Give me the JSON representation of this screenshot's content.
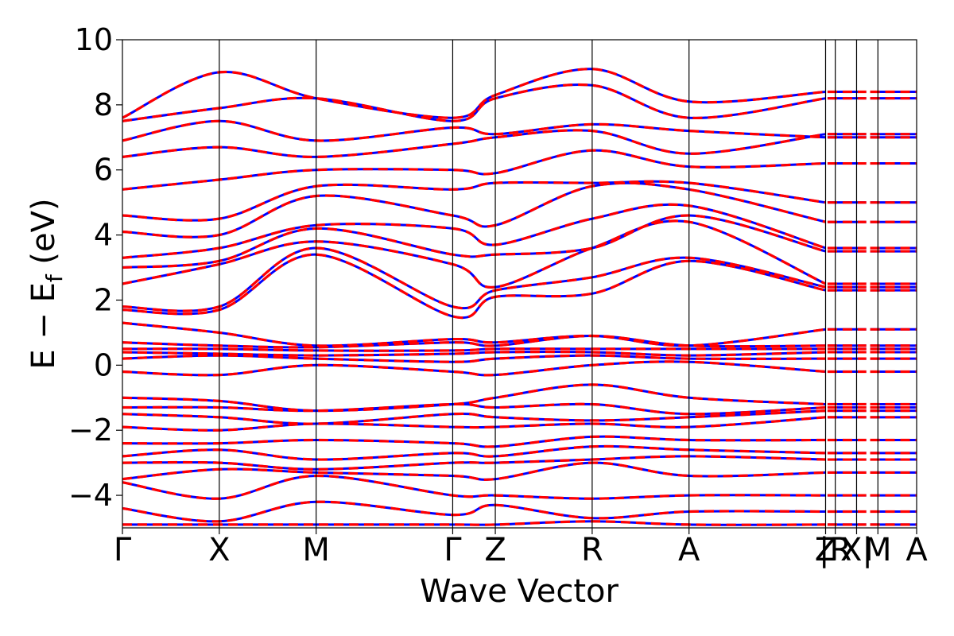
{
  "chart_data": {
    "type": "line",
    "title": "",
    "xlabel": "Wave Vector",
    "ylabel": "E − E",
    "ylabel_sub": "f",
    "ylabel_unit": " (eV)",
    "ylim": [
      -5,
      10
    ],
    "yticks": [
      -4,
      -2,
      0,
      2,
      4,
      6,
      8,
      10
    ],
    "ytick_labels": [
      "−4",
      "−2",
      "0",
      "2",
      "4",
      "6",
      "8",
      "10"
    ],
    "xlim": [
      0,
      8.2
    ],
    "grid": false,
    "legend": "none",
    "kpoints": [
      {
        "label": "Γ",
        "x": 0
      },
      {
        "label": "X",
        "x": 1.0
      },
      {
        "label": "M",
        "x": 2.0
      },
      {
        "label": "Γ",
        "x": 3.41
      },
      {
        "label": "Z",
        "x": 3.85
      },
      {
        "label": "R",
        "x": 4.85
      },
      {
        "label": "A",
        "x": 5.85
      },
      {
        "label": "Z",
        "x": 7.26
      },
      {
        "label": "|R",
        "x": 7.36
      },
      {
        "label": "X|",
        "x": 7.58
      },
      {
        "label": "M",
        "x": 7.8
      },
      {
        "label": "A",
        "x": 8.2
      }
    ],
    "kpath_breaks": [
      7.26,
      7.7
    ],
    "series": [
      {
        "name": "",
        "color": "#0000ff",
        "style": "solid"
      },
      {
        "name": "",
        "color": "#ff0000",
        "style": "dashed"
      }
    ],
    "bands_at_kpoints": {
      "x": [
        0,
        1.0,
        2.0,
        3.41,
        3.85,
        4.85,
        5.85,
        7.26
      ],
      "energies": [
        [
          -4.9,
          -4.9,
          -4.9,
          -4.9,
          -4.9,
          -4.8,
          -4.9,
          -4.9
        ],
        [
          -4.4,
          -4.8,
          -4.2,
          -4.6,
          -4.3,
          -4.7,
          -4.5,
          -4.5
        ],
        [
          -3.6,
          -4.1,
          -3.4,
          -4.0,
          -4.0,
          -4.1,
          -4.0,
          -4.0
        ],
        [
          -3.5,
          -3.2,
          -3.3,
          -3.4,
          -3.5,
          -3.0,
          -3.4,
          -3.3
        ],
        [
          -3.0,
          -3.0,
          -3.2,
          -3.0,
          -3.0,
          -2.9,
          -2.8,
          -2.9
        ],
        [
          -2.8,
          -2.6,
          -2.9,
          -2.7,
          -2.8,
          -2.5,
          -2.6,
          -2.7
        ],
        [
          -2.4,
          -2.4,
          -2.3,
          -2.4,
          -2.5,
          -2.2,
          -2.3,
          -2.3
        ],
        [
          -1.9,
          -2.0,
          -1.8,
          -1.9,
          -1.9,
          -1.8,
          -1.9,
          -1.6
        ],
        [
          -1.5,
          -1.6,
          -1.8,
          -1.5,
          -1.6,
          -1.7,
          -1.6,
          -1.4
        ],
        [
          -1.3,
          -1.3,
          -1.4,
          -1.2,
          -1.3,
          -1.2,
          -1.5,
          -1.3
        ],
        [
          -1.0,
          -1.1,
          -1.4,
          -1.2,
          -1.0,
          -0.6,
          -1.0,
          -1.2
        ],
        [
          -0.2,
          -0.3,
          0.0,
          -0.2,
          -0.3,
          0.0,
          0.1,
          -0.2
        ],
        [
          0.2,
          0.3,
          0.2,
          0.1,
          0.2,
          0.3,
          0.2,
          0.2
        ],
        [
          0.4,
          0.35,
          0.3,
          0.35,
          0.4,
          0.4,
          0.3,
          0.4
        ],
        [
          0.5,
          0.5,
          0.45,
          0.45,
          0.5,
          0.5,
          0.5,
          0.5
        ],
        [
          0.7,
          0.6,
          0.55,
          0.7,
          0.6,
          0.9,
          0.6,
          0.6
        ],
        [
          1.3,
          1.0,
          0.6,
          0.8,
          0.7,
          0.9,
          0.6,
          1.1
        ],
        [
          1.7,
          1.7,
          3.4,
          1.5,
          2.1,
          2.2,
          3.2,
          2.3
        ],
        [
          1.8,
          1.8,
          3.6,
          1.8,
          2.3,
          2.7,
          3.3,
          2.4
        ],
        [
          2.5,
          3.1,
          3.8,
          3.1,
          2.4,
          3.6,
          4.4,
          2.5
        ],
        [
          3.0,
          3.2,
          4.2,
          3.4,
          3.4,
          3.6,
          4.6,
          3.5
        ],
        [
          3.3,
          3.6,
          4.3,
          4.2,
          3.7,
          4.5,
          4.9,
          3.6
        ],
        [
          4.1,
          4.0,
          5.2,
          4.6,
          4.3,
          5.5,
          5.4,
          4.4
        ],
        [
          4.6,
          4.5,
          5.5,
          5.4,
          5.6,
          5.6,
          5.6,
          5.0
        ],
        [
          5.4,
          5.7,
          6.0,
          6.0,
          5.9,
          6.6,
          6.1,
          6.2
        ],
        [
          6.4,
          6.7,
          6.4,
          6.8,
          7.0,
          7.2,
          6.5,
          7.1
        ],
        [
          6.9,
          7.5,
          6.9,
          7.3,
          7.1,
          7.4,
          7.2,
          7.0
        ],
        [
          7.5,
          7.9,
          8.2,
          7.5,
          8.2,
          8.6,
          7.6,
          8.2
        ],
        [
          7.6,
          9.0,
          8.2,
          7.6,
          8.3,
          9.1,
          8.1,
          8.4
        ]
      ]
    }
  }
}
